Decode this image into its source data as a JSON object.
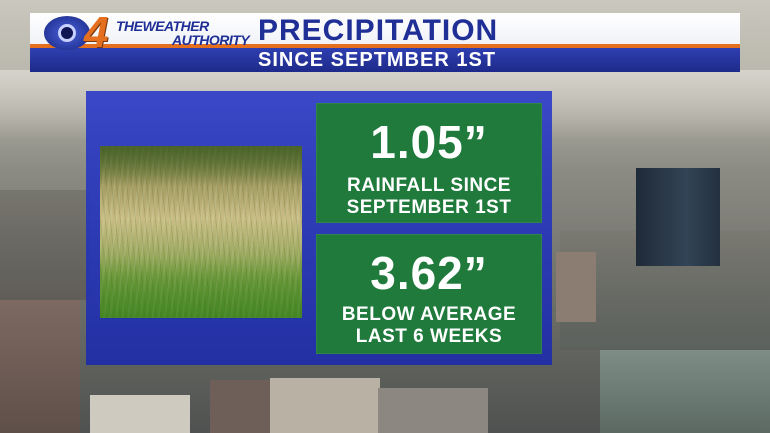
{
  "header": {
    "title": "PRECIPITATION",
    "subtitle": "SINCE SEPTMBER 1ST",
    "logo": {
      "number": "4",
      "line1": "THEWEATHER",
      "line2": "AUTHORITY"
    }
  },
  "stats": [
    {
      "value": "1.05”",
      "label_line1": "RAINFALL SINCE",
      "label_line2": "SEPTEMBER 1ST"
    },
    {
      "value": "3.62”",
      "label_line1": "BELOW AVERAGE",
      "label_line2": "LAST 6 WEEKS"
    }
  ],
  "colors": {
    "brand_blue": "#1f2f96",
    "brand_orange": "#e46f1e",
    "panel_blue": "#2e3ec8",
    "stat_green": "#1f7a3c"
  },
  "images": {
    "background": "city-aerial-photo",
    "inset": "dry-grass-photo"
  }
}
